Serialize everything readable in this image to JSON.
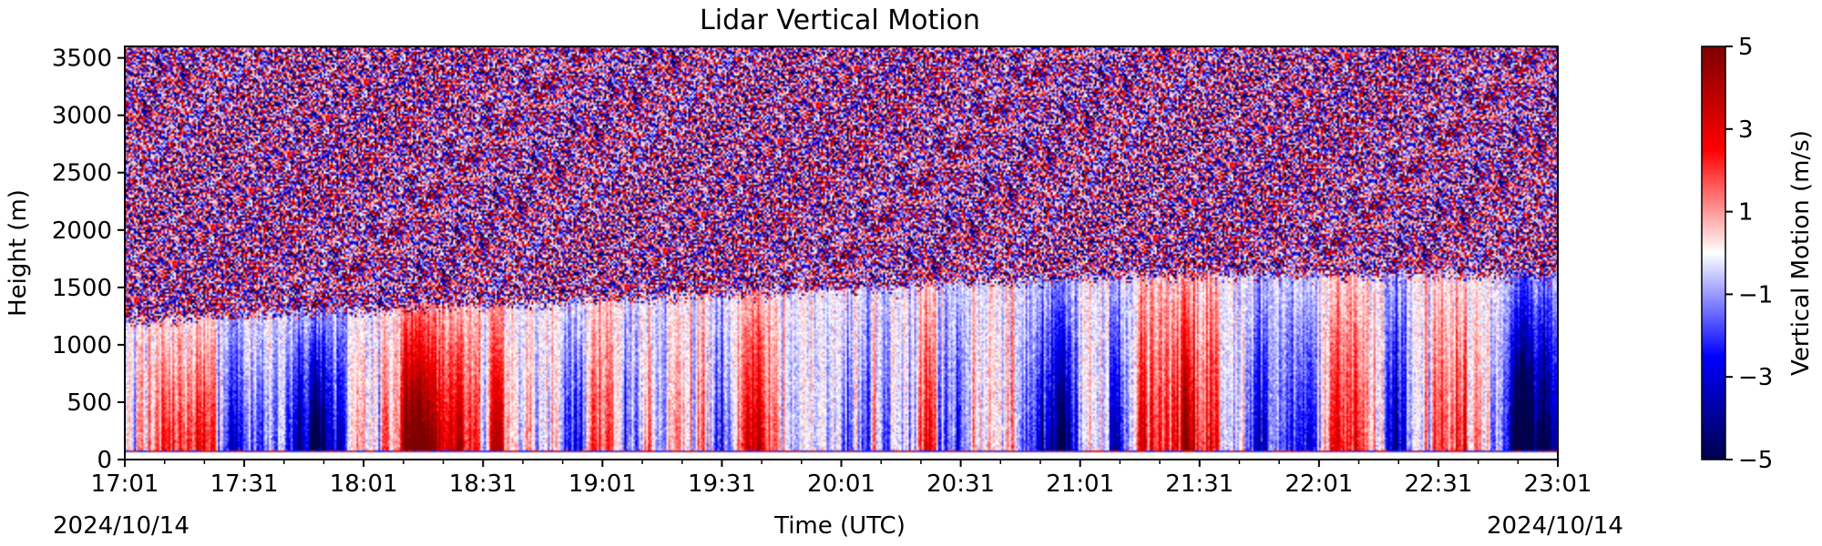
{
  "chart_data": {
    "type": "heatmap",
    "title": "Lidar Vertical Motion",
    "xlabel": "Time (UTC)",
    "ylabel": "Height (m)",
    "x_range": [
      "17:01",
      "23:01"
    ],
    "x_ticks": [
      "17:01",
      "17:31",
      "18:01",
      "18:31",
      "19:01",
      "19:31",
      "20:01",
      "20:31",
      "21:01",
      "21:31",
      "22:01",
      "22:31",
      "23:01"
    ],
    "date_left": "2024/10/14",
    "date_right": "2024/10/14",
    "y_ticks": [
      0,
      500,
      1000,
      1500,
      2000,
      2500,
      3000,
      3500
    ],
    "ylim": [
      0,
      3600
    ],
    "colorbar": {
      "label": "Vertical Motion (m/s)",
      "range": [
        -5,
        5
      ],
      "ticks": [
        -5,
        -3,
        -1,
        1,
        3,
        5
      ],
      "tick_labels": [
        "−5",
        "−3",
        "−1",
        "1",
        "3",
        "5"
      ],
      "colormap": "seismic",
      "colors": [
        "#00004c",
        "#0000ff",
        "#ffffff",
        "#ff0000",
        "#7f0000"
      ]
    },
    "features": {
      "boundary_layer_top_m": {
        "start": 1200,
        "end": 1600
      },
      "noise_region": "above boundary layer top",
      "lowest_valid_height_m": 60
    }
  }
}
